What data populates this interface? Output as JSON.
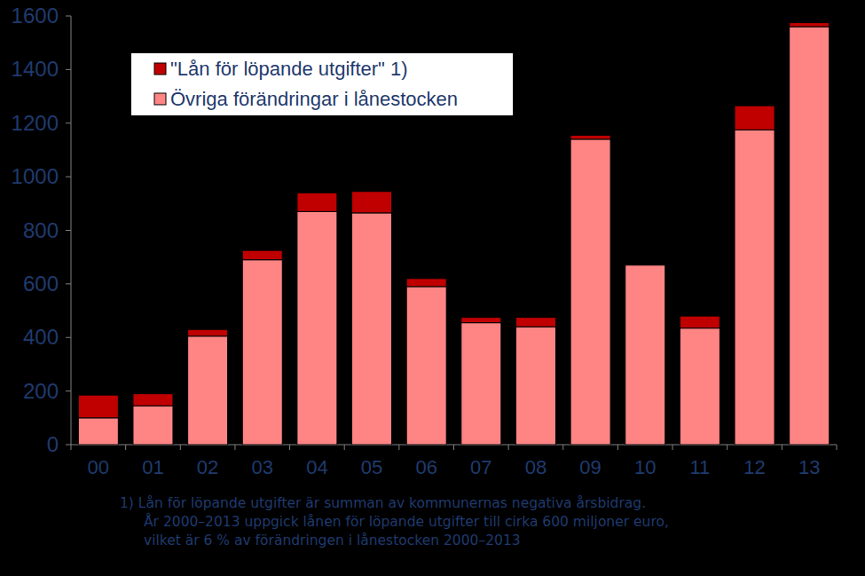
{
  "chart_data": {
    "type": "bar",
    "stacked": true,
    "categories": [
      "00",
      "01",
      "02",
      "03",
      "04",
      "05",
      "06",
      "07",
      "08",
      "09",
      "10",
      "11",
      "12",
      "13"
    ],
    "series": [
      {
        "name": "Övriga förändringar i lånestocken",
        "color": "#ff8585",
        "values": [
          100,
          145,
          405,
          690,
          870,
          865,
          590,
          455,
          440,
          1140,
          670,
          435,
          1175,
          1560
        ]
      },
      {
        "name": "\"Lån för löpande utgifter\" 1)",
        "color": "#c00000",
        "values": [
          85,
          45,
          25,
          35,
          70,
          80,
          30,
          20,
          35,
          15,
          0,
          45,
          90,
          15
        ]
      }
    ],
    "ylim": [
      0,
      1600
    ],
    "yticks": [
      0,
      200,
      400,
      600,
      800,
      1000,
      1200,
      1400,
      1600
    ],
    "legend": "upper left",
    "annotations": [
      "1) Lån för löpande utgifter är summan av kommunernas negativa årsbidrag.",
      "År 2000–2013 uppgick lånen för löpande utgifter till cirka 600 miljoner euro,",
      "vilket är 6 % av förändringen i lånestocken 2000–2013"
    ]
  }
}
